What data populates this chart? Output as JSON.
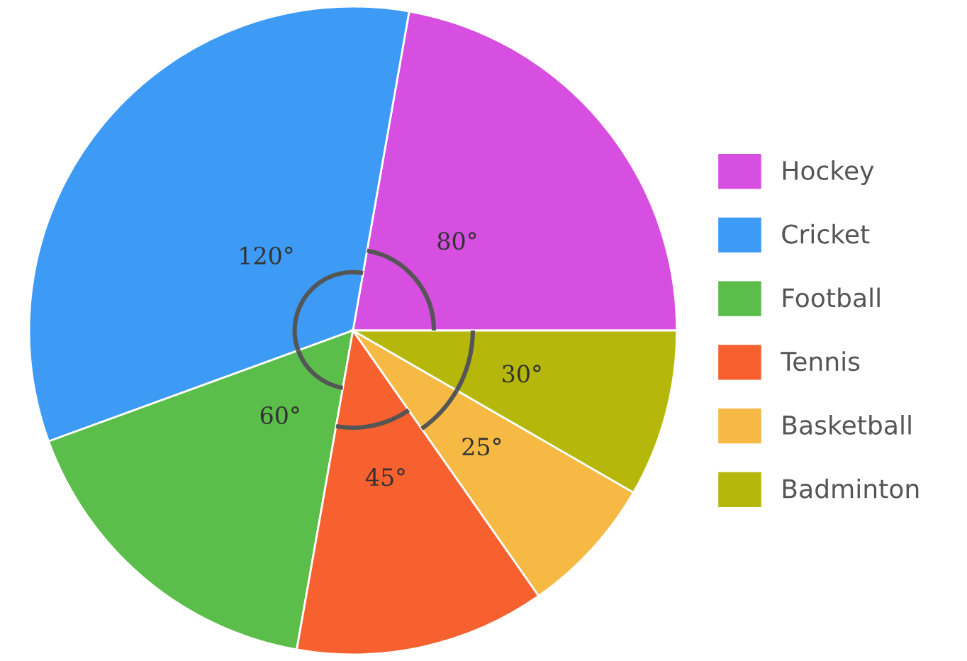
{
  "chart_data": {
    "type": "pie",
    "categories": [
      "Hockey",
      "Cricket",
      "Football",
      "Tennis",
      "Basketball",
      "Badminton"
    ],
    "values": [
      80,
      120,
      60,
      45,
      25,
      30
    ],
    "value_labels": [
      "80°",
      "120°",
      "60°",
      "45°",
      "25°",
      "30°"
    ],
    "colors": [
      "#d64fe0",
      "#3d9af5",
      "#5bbd4a",
      "#f7612f",
      "#f6b944",
      "#b5b80b"
    ],
    "legend": "right"
  }
}
